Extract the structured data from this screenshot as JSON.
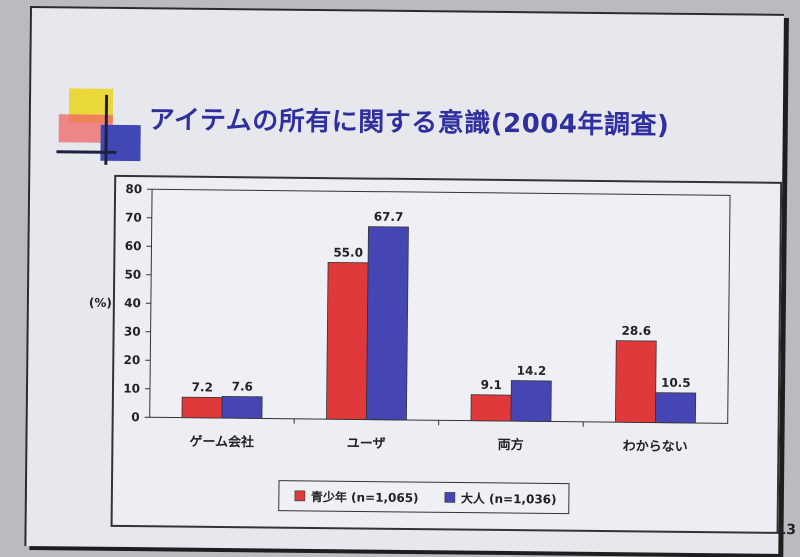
{
  "slide": {
    "title": "アイテムの所有に関する意識(2004年調査)",
    "page_number": "13"
  },
  "chart_data": {
    "type": "bar",
    "title": "アイテムの所有に関する意識(2004年調査)",
    "ylabel": "(%)",
    "xlabel": "",
    "ylim": [
      0,
      80
    ],
    "yticks": [
      0,
      10,
      20,
      30,
      40,
      50,
      60,
      70,
      80
    ],
    "categories": [
      "ゲーム会社",
      "ユーザ",
      "両方",
      "わからない"
    ],
    "series": [
      {
        "name": "青少年 (n=1,065)",
        "color": "#e0393b",
        "values": [
          7.2,
          55.0,
          9.1,
          28.6
        ]
      },
      {
        "name": "大人 (n=1,036)",
        "color": "#4546b3",
        "values": [
          7.6,
          67.7,
          14.2,
          10.5
        ]
      }
    ],
    "data_labels": [
      [
        "7.2",
        "55.0",
        "9.1",
        "28.6"
      ],
      [
        "7.6",
        "67.7",
        "14.2",
        "10.5"
      ]
    ],
    "grid": false,
    "legend_position": "bottom-center"
  }
}
